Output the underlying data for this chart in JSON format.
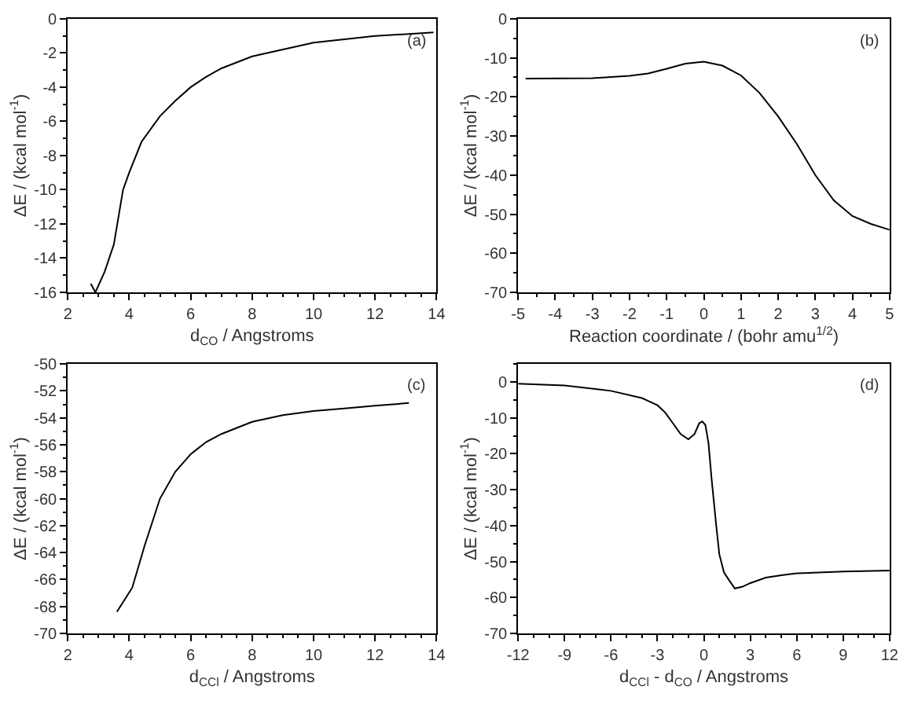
{
  "chart_data": [
    {
      "type": "line",
      "xlabel": "d$_{CO}$ / Angstroms",
      "ylabel": "ΔE / (kcal mol$^{-1}$)",
      "annotations": [
        "(a)"
      ],
      "xlim": [
        2,
        14
      ],
      "ylim": [
        -16,
        0
      ],
      "xticks": [
        2,
        4,
        6,
        8,
        10,
        12,
        14
      ],
      "yticks": [
        -16,
        -14,
        -12,
        -10,
        -8,
        -6,
        -4,
        -2,
        0
      ],
      "series": [
        {
          "color": "#000000",
          "x": [
            2.75,
            2.9,
            3.2,
            3.5,
            3.8,
            4.0,
            4.4,
            5.0,
            5.5,
            6.0,
            6.5,
            7.0,
            8.0,
            9.0,
            10.0,
            11.0,
            12.0,
            13.0,
            13.9
          ],
          "values": [
            -15.5,
            -16.0,
            -14.8,
            -13.2,
            -10.0,
            -9.0,
            -7.2,
            -5.7,
            -4.8,
            -4.0,
            -3.4,
            -2.9,
            -2.2,
            -1.8,
            -1.4,
            -1.2,
            -1.0,
            -0.9,
            -0.8
          ]
        }
      ]
    },
    {
      "type": "line",
      "xlabel": "Reaction coordinate / (bohr amu$^{1/2}$)",
      "ylabel": "ΔE / (kcal mol$^{-1}$)",
      "annotations": [
        "(b)"
      ],
      "xlim": [
        -5,
        5
      ],
      "ylim": [
        -70,
        0
      ],
      "xticks": [
        -5,
        -4,
        -3,
        -2,
        -1,
        0,
        1,
        2,
        3,
        4,
        5
      ],
      "yticks": [
        -70,
        -60,
        -50,
        -40,
        -30,
        -20,
        -10,
        0
      ],
      "series": [
        {
          "color": "#000000",
          "x": [
            -4.8,
            -3,
            -2,
            -1.5,
            -1,
            -0.5,
            0,
            0.5,
            1,
            1.5,
            2,
            2.5,
            3,
            3.5,
            4,
            4.5,
            5
          ],
          "values": [
            -15.3,
            -15.2,
            -14.6,
            -14,
            -12.8,
            -11.5,
            -11,
            -12,
            -14.5,
            -19,
            -25,
            -32,
            -40,
            -46.5,
            -50.5,
            -52.5,
            -54
          ]
        }
      ]
    },
    {
      "type": "line",
      "xlabel": "d$_{CCl}$ / Angstroms",
      "ylabel": "ΔE / (kcal mol$^{-1}$)",
      "annotations": [
        "(c)"
      ],
      "xlim": [
        2,
        14
      ],
      "ylim": [
        -70,
        -50
      ],
      "xticks": [
        2,
        4,
        6,
        8,
        10,
        12,
        14
      ],
      "yticks": [
        -70,
        -68,
        -66,
        -64,
        -62,
        -60,
        -58,
        -56,
        -54,
        -52,
        -50
      ],
      "series": [
        {
          "color": "#000000",
          "x": [
            3.6,
            4.1,
            4.5,
            5.0,
            5.5,
            6.0,
            6.5,
            7.0,
            8.0,
            9.0,
            10.0,
            11.0,
            12.0,
            13.1
          ],
          "values": [
            -68.4,
            -66.6,
            -63.5,
            -60,
            -58,
            -56.7,
            -55.8,
            -55.2,
            -54.3,
            -53.8,
            -53.5,
            -53.3,
            -53.1,
            -52.9
          ]
        }
      ]
    },
    {
      "type": "line",
      "xlabel": "d$_{CCl}$ - d$_{CO}$ / Angstroms",
      "ylabel": "ΔE / (kcal mol$^{-1}$)",
      "annotations": [
        "(d)"
      ],
      "xlim": [
        -12,
        12
      ],
      "ylim": [
        -70,
        5
      ],
      "xticks": [
        -12,
        -9,
        -6,
        -3,
        0,
        3,
        6,
        9,
        12
      ],
      "yticks": [
        -70,
        -60,
        -50,
        -40,
        -30,
        -20,
        -10,
        0
      ],
      "series": [
        {
          "color": "#000000",
          "x": [
            -12,
            -9,
            -6,
            -4,
            -3,
            -2.5,
            -2,
            -1.5,
            -1,
            -0.6,
            -0.3,
            -0.1,
            0.1,
            0.3,
            0.5,
            0.8,
            1,
            1.3,
            1.6,
            2,
            2.5,
            3,
            4,
            5,
            6,
            9,
            12
          ],
          "values": [
            -0.5,
            -1,
            -2.5,
            -4.5,
            -6.5,
            -8.5,
            -11.5,
            -14.5,
            -16,
            -14.5,
            -11.5,
            -11,
            -12,
            -17,
            -27,
            -40,
            -48,
            -53,
            -55,
            -57.5,
            -57,
            -56,
            -54.5,
            -53.8,
            -53.3,
            -52.8,
            -52.5
          ]
        }
      ]
    }
  ]
}
